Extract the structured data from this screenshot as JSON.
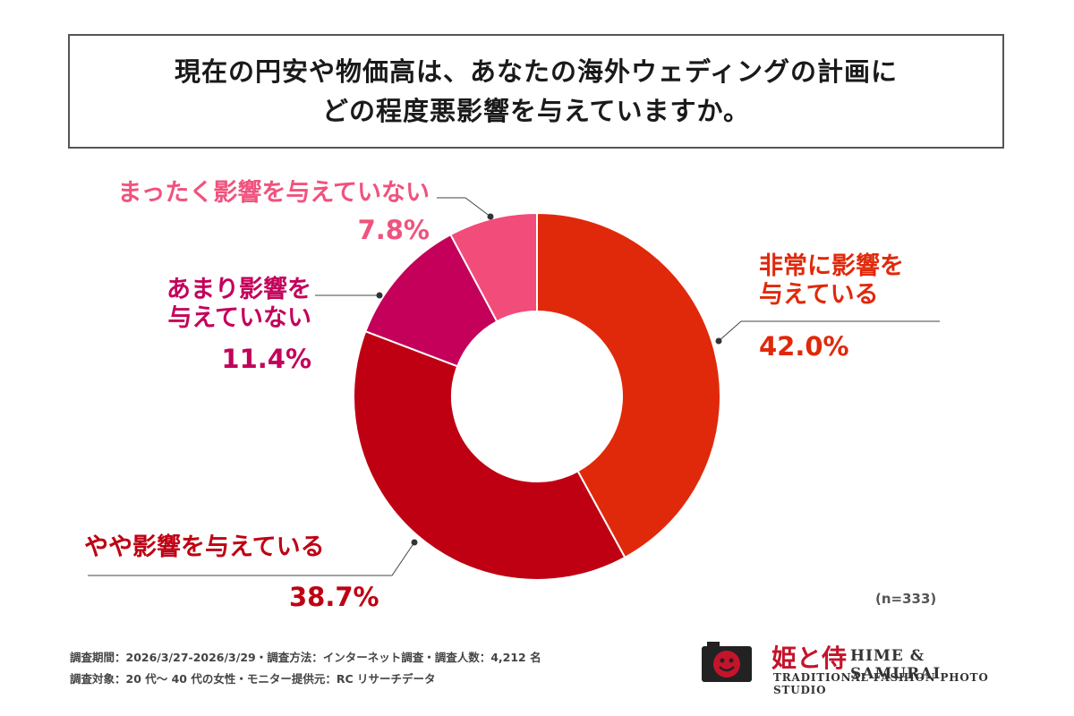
{
  "title": {
    "line1": "現在の円安や物価高は、あなたの海外ウェディングの計画に",
    "line2": "どの程度悪影響を与えていますか。"
  },
  "chart_data": {
    "type": "pie",
    "variant": "donut",
    "title": "現在の円安や物価高は、あなたの海外ウェディングの計画にどの程度悪影響を与えていますか。",
    "categories": [
      "非常に影響を与えている",
      "やや影響を与えている",
      "あまり影響を与えていない",
      "まったく影響を与えていない"
    ],
    "values": [
      42.0,
      38.7,
      11.4,
      7.8
    ],
    "labels": [
      {
        "text_lines": [
          "非常に影響を",
          "与えている"
        ],
        "percent": "42.0%"
      },
      {
        "text_lines": [
          "やや影響を与えている"
        ],
        "percent": "38.7%"
      },
      {
        "text_lines": [
          "あまり影響を",
          "与えていない"
        ],
        "percent": "11.4%"
      },
      {
        "text_lines": [
          "まったく影響を与えていない"
        ],
        "percent": "7.8%"
      }
    ],
    "colors": [
      "#e0290a",
      "#bf0013",
      "#c4005a",
      "#f24c7b"
    ],
    "label_colors": [
      "#e0290a",
      "#bf0013",
      "#c4005a",
      "#f0527e"
    ],
    "n_note": "(n=333)"
  },
  "footer": {
    "line1": "調査期間：2026/3/27-2026/3/29・調査方法：インターネット調査・調査人数：4,212 名",
    "line2": "調査対象：20 代〜 40 代の女性・モニター提供元：RC リサーチデータ"
  },
  "logo": {
    "kanji": "姫と侍",
    "name": "HIME & SAMURAI",
    "subtitle": "TRADITIONAL FASHION PHOTO STUDIO",
    "color": "#c4142b"
  }
}
